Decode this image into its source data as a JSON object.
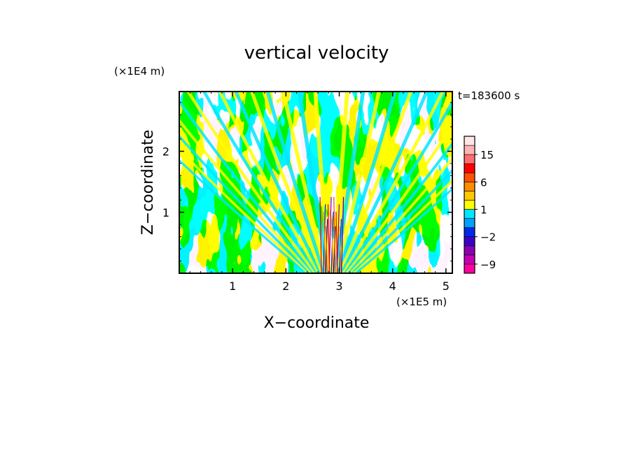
{
  "chart_data": {
    "type": "heatmap",
    "title": "vertical velocity",
    "xlabel": "X−coordinate",
    "ylabel": "Z−coordinate",
    "x_unit": "(×1E5 m)",
    "y_unit": "(×1E4 m)",
    "time_label": "t=183600 s",
    "xlim": [
      0,
      5.12
    ],
    "ylim": [
      0,
      2.98
    ],
    "x_ticks": [
      1,
      2,
      3,
      4,
      5
    ],
    "x_tick_labels": [
      "1",
      "2",
      "3",
      "4",
      "5"
    ],
    "y_ticks": [
      1,
      2
    ],
    "y_tick_labels": [
      "1",
      "2"
    ],
    "colorbar": {
      "levels": [
        -12,
        -9,
        -6,
        -4,
        -2,
        -1,
        0,
        1,
        2,
        4,
        6,
        9,
        12,
        15,
        20
      ],
      "labeled_levels": [
        15,
        6,
        1,
        -2,
        -9
      ],
      "labels": [
        "15",
        "6",
        "1",
        "−2",
        "−9"
      ],
      "colors": [
        "#ff00a0",
        "#c800b4",
        "#8c00b4",
        "#3c00c8",
        "#0028e6",
        "#00a0ff",
        "#00e6ff",
        "#ffff00",
        "#ffc800",
        "#ff8c00",
        "#ff5000",
        "#ff0000",
        "#ff6e6e",
        "#ffb4b4",
        "#ffe6e6"
      ]
    }
  }
}
